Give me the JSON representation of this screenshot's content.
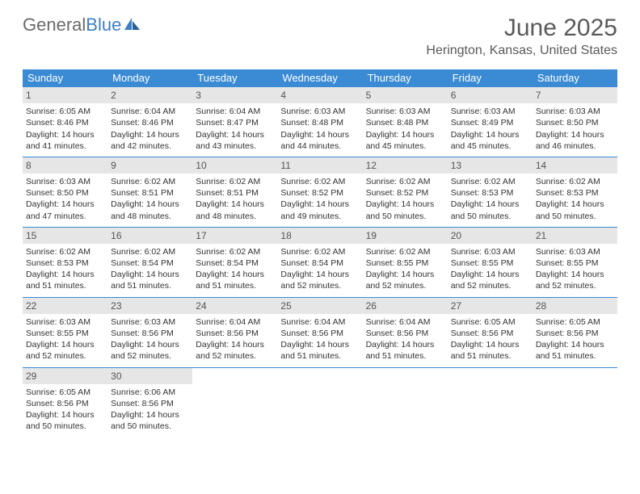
{
  "logo": {
    "text1": "General",
    "text2": "Blue"
  },
  "heading": {
    "month": "June 2025",
    "location": "Herington, Kansas, United States"
  },
  "colors": {
    "header_bg": "#3b8bd4",
    "header_text": "#ffffff",
    "daynum_bg": "#e6e6e6",
    "border": "#3b8bd4",
    "body_text": "#333333"
  },
  "weekdays": [
    "Sunday",
    "Monday",
    "Tuesday",
    "Wednesday",
    "Thursday",
    "Friday",
    "Saturday"
  ],
  "weeks": [
    [
      {
        "n": "1",
        "sr": "Sunrise: 6:05 AM",
        "ss": "Sunset: 8:46 PM",
        "d1": "Daylight: 14 hours",
        "d2": "and 41 minutes."
      },
      {
        "n": "2",
        "sr": "Sunrise: 6:04 AM",
        "ss": "Sunset: 8:46 PM",
        "d1": "Daylight: 14 hours",
        "d2": "and 42 minutes."
      },
      {
        "n": "3",
        "sr": "Sunrise: 6:04 AM",
        "ss": "Sunset: 8:47 PM",
        "d1": "Daylight: 14 hours",
        "d2": "and 43 minutes."
      },
      {
        "n": "4",
        "sr": "Sunrise: 6:03 AM",
        "ss": "Sunset: 8:48 PM",
        "d1": "Daylight: 14 hours",
        "d2": "and 44 minutes."
      },
      {
        "n": "5",
        "sr": "Sunrise: 6:03 AM",
        "ss": "Sunset: 8:48 PM",
        "d1": "Daylight: 14 hours",
        "d2": "and 45 minutes."
      },
      {
        "n": "6",
        "sr": "Sunrise: 6:03 AM",
        "ss": "Sunset: 8:49 PM",
        "d1": "Daylight: 14 hours",
        "d2": "and 45 minutes."
      },
      {
        "n": "7",
        "sr": "Sunrise: 6:03 AM",
        "ss": "Sunset: 8:50 PM",
        "d1": "Daylight: 14 hours",
        "d2": "and 46 minutes."
      }
    ],
    [
      {
        "n": "8",
        "sr": "Sunrise: 6:03 AM",
        "ss": "Sunset: 8:50 PM",
        "d1": "Daylight: 14 hours",
        "d2": "and 47 minutes."
      },
      {
        "n": "9",
        "sr": "Sunrise: 6:02 AM",
        "ss": "Sunset: 8:51 PM",
        "d1": "Daylight: 14 hours",
        "d2": "and 48 minutes."
      },
      {
        "n": "10",
        "sr": "Sunrise: 6:02 AM",
        "ss": "Sunset: 8:51 PM",
        "d1": "Daylight: 14 hours",
        "d2": "and 48 minutes."
      },
      {
        "n": "11",
        "sr": "Sunrise: 6:02 AM",
        "ss": "Sunset: 8:52 PM",
        "d1": "Daylight: 14 hours",
        "d2": "and 49 minutes."
      },
      {
        "n": "12",
        "sr": "Sunrise: 6:02 AM",
        "ss": "Sunset: 8:52 PM",
        "d1": "Daylight: 14 hours",
        "d2": "and 50 minutes."
      },
      {
        "n": "13",
        "sr": "Sunrise: 6:02 AM",
        "ss": "Sunset: 8:53 PM",
        "d1": "Daylight: 14 hours",
        "d2": "and 50 minutes."
      },
      {
        "n": "14",
        "sr": "Sunrise: 6:02 AM",
        "ss": "Sunset: 8:53 PM",
        "d1": "Daylight: 14 hours",
        "d2": "and 50 minutes."
      }
    ],
    [
      {
        "n": "15",
        "sr": "Sunrise: 6:02 AM",
        "ss": "Sunset: 8:53 PM",
        "d1": "Daylight: 14 hours",
        "d2": "and 51 minutes."
      },
      {
        "n": "16",
        "sr": "Sunrise: 6:02 AM",
        "ss": "Sunset: 8:54 PM",
        "d1": "Daylight: 14 hours",
        "d2": "and 51 minutes."
      },
      {
        "n": "17",
        "sr": "Sunrise: 6:02 AM",
        "ss": "Sunset: 8:54 PM",
        "d1": "Daylight: 14 hours",
        "d2": "and 51 minutes."
      },
      {
        "n": "18",
        "sr": "Sunrise: 6:02 AM",
        "ss": "Sunset: 8:54 PM",
        "d1": "Daylight: 14 hours",
        "d2": "and 52 minutes."
      },
      {
        "n": "19",
        "sr": "Sunrise: 6:02 AM",
        "ss": "Sunset: 8:55 PM",
        "d1": "Daylight: 14 hours",
        "d2": "and 52 minutes."
      },
      {
        "n": "20",
        "sr": "Sunrise: 6:03 AM",
        "ss": "Sunset: 8:55 PM",
        "d1": "Daylight: 14 hours",
        "d2": "and 52 minutes."
      },
      {
        "n": "21",
        "sr": "Sunrise: 6:03 AM",
        "ss": "Sunset: 8:55 PM",
        "d1": "Daylight: 14 hours",
        "d2": "and 52 minutes."
      }
    ],
    [
      {
        "n": "22",
        "sr": "Sunrise: 6:03 AM",
        "ss": "Sunset: 8:55 PM",
        "d1": "Daylight: 14 hours",
        "d2": "and 52 minutes."
      },
      {
        "n": "23",
        "sr": "Sunrise: 6:03 AM",
        "ss": "Sunset: 8:56 PM",
        "d1": "Daylight: 14 hours",
        "d2": "and 52 minutes."
      },
      {
        "n": "24",
        "sr": "Sunrise: 6:04 AM",
        "ss": "Sunset: 8:56 PM",
        "d1": "Daylight: 14 hours",
        "d2": "and 52 minutes."
      },
      {
        "n": "25",
        "sr": "Sunrise: 6:04 AM",
        "ss": "Sunset: 8:56 PM",
        "d1": "Daylight: 14 hours",
        "d2": "and 51 minutes."
      },
      {
        "n": "26",
        "sr": "Sunrise: 6:04 AM",
        "ss": "Sunset: 8:56 PM",
        "d1": "Daylight: 14 hours",
        "d2": "and 51 minutes."
      },
      {
        "n": "27",
        "sr": "Sunrise: 6:05 AM",
        "ss": "Sunset: 8:56 PM",
        "d1": "Daylight: 14 hours",
        "d2": "and 51 minutes."
      },
      {
        "n": "28",
        "sr": "Sunrise: 6:05 AM",
        "ss": "Sunset: 8:56 PM",
        "d1": "Daylight: 14 hours",
        "d2": "and 51 minutes."
      }
    ],
    [
      {
        "n": "29",
        "sr": "Sunrise: 6:05 AM",
        "ss": "Sunset: 8:56 PM",
        "d1": "Daylight: 14 hours",
        "d2": "and 50 minutes."
      },
      {
        "n": "30",
        "sr": "Sunrise: 6:06 AM",
        "ss": "Sunset: 8:56 PM",
        "d1": "Daylight: 14 hours",
        "d2": "and 50 minutes."
      },
      null,
      null,
      null,
      null,
      null
    ]
  ]
}
